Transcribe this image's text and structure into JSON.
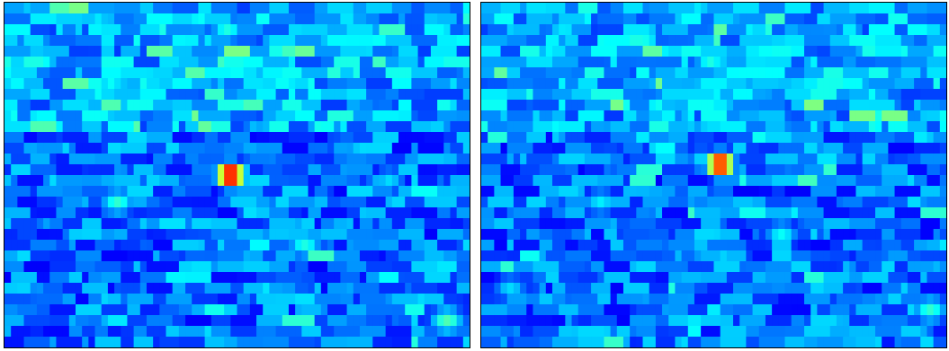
{
  "chart_data": [
    {
      "type": "heatmap",
      "colormap": "jet",
      "grid": false,
      "shape": {
        "rows": 32,
        "cols": 72
      },
      "colors": {
        "background_low": "#0000b4",
        "mid_low": "#0050ff",
        "mid": "#00c8ff",
        "peak_high": "#ff4000",
        "peak_max": "#8b0000"
      },
      "peak": {
        "row": 15.5,
        "col": 34.5,
        "value": 1.0
      },
      "texture_hotspots": [
        {
          "row": 2,
          "col": 34,
          "value": 0.4
        },
        {
          "row": 7,
          "col": 16,
          "value": 0.38
        },
        {
          "row": 18,
          "col": 17,
          "value": 0.42
        },
        {
          "row": 22,
          "col": 46,
          "value": 0.4
        },
        {
          "row": 29,
          "col": 68,
          "value": 0.45
        },
        {
          "row": 16,
          "col": 59,
          "value": 0.34
        }
      ]
    },
    {
      "type": "heatmap",
      "colormap": "jet",
      "grid": false,
      "shape": {
        "rows": 32,
        "cols": 72
      },
      "colors": {
        "background_low": "#0000b4",
        "mid_low": "#0050ff",
        "mid": "#00c8ff",
        "peak_high": "#ff4000",
        "peak_max": "#8b0000"
      },
      "peak": {
        "row": 14.5,
        "col": 36.5,
        "value": 0.95
      },
      "texture_hotspots": [
        {
          "row": 5,
          "col": 35,
          "value": 0.4
        },
        {
          "row": 18,
          "col": 18,
          "value": 0.36
        },
        {
          "row": 21,
          "col": 46,
          "value": 0.38
        },
        {
          "row": 28,
          "col": 69,
          "value": 0.42
        },
        {
          "row": 26,
          "col": 4,
          "value": 0.34
        }
      ]
    }
  ]
}
